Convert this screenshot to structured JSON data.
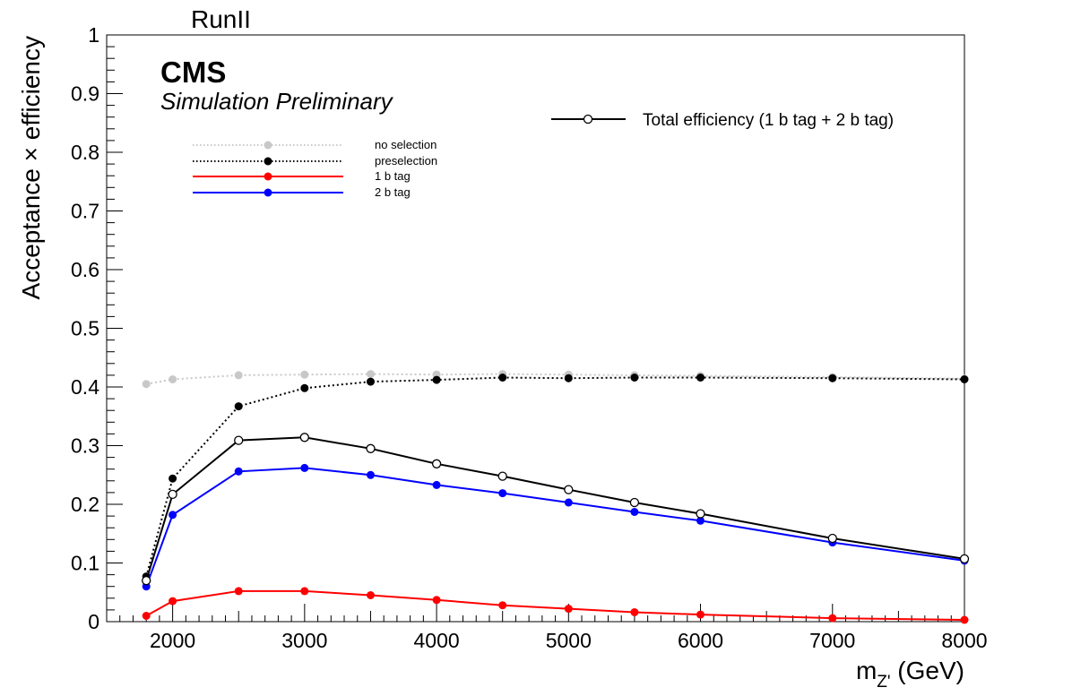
{
  "header": {
    "run_label": "RunII",
    "cms_label": "CMS",
    "sim_label": "Simulation Preliminary"
  },
  "chart_data": {
    "type": "line",
    "title": "",
    "xlabel_main": "m",
    "xlabel_sub": "Z'",
    "xlabel_unit": " (GeV)",
    "ylabel": "Acceptance × efficiency",
    "xlim": [
      1500,
      8000
    ],
    "ylim": [
      0,
      1
    ],
    "x_major_ticks": [
      2000,
      3000,
      4000,
      5000,
      6000,
      7000,
      8000
    ],
    "y_major_ticks": [
      0,
      0.1,
      0.2,
      0.3,
      0.4,
      0.5,
      0.6,
      0.7,
      0.8,
      0.9,
      1
    ],
    "y_tick_labels": [
      "0",
      "0.1",
      "0.2",
      "0.3",
      "0.4",
      "0.5",
      "0.6",
      "0.7",
      "0.8",
      "0.9",
      "1"
    ],
    "x_tick_labels": [
      "2000",
      "3000",
      "4000",
      "5000",
      "6000",
      "7000",
      "8000"
    ],
    "grid": false,
    "legend_placement": "top-left",
    "x": [
      1800,
      2000,
      2500,
      3000,
      3500,
      4000,
      4500,
      5000,
      5500,
      6000,
      7000,
      8000
    ],
    "series": [
      {
        "name": "no selection",
        "color": "#c8c8c8",
        "style": "dotted",
        "marker": "filled",
        "values": [
          0.405,
          0.413,
          0.42,
          0.421,
          0.422,
          0.421,
          0.422,
          0.421,
          0.42,
          0.419,
          0.417,
          0.414
        ]
      },
      {
        "name": "preselection",
        "color": "#000000",
        "style": "dotted",
        "marker": "filled",
        "values": [
          0.077,
          0.244,
          0.367,
          0.398,
          0.409,
          0.412,
          0.416,
          0.415,
          0.416,
          0.416,
          0.415,
          0.413
        ]
      },
      {
        "name": "1 b tag",
        "color": "#ff0000",
        "style": "solid",
        "marker": "filled",
        "values": [
          0.01,
          0.035,
          0.052,
          0.052,
          0.045,
          0.037,
          0.028,
          0.022,
          0.016,
          0.012,
          0.006,
          0.003
        ]
      },
      {
        "name": "2 b tag",
        "color": "#0000ff",
        "style": "solid",
        "marker": "filled",
        "values": [
          0.06,
          0.182,
          0.256,
          0.262,
          0.25,
          0.233,
          0.219,
          0.203,
          0.187,
          0.172,
          0.135,
          0.104
        ]
      },
      {
        "name": "Total efficiency (1 b tag + 2 b tag)",
        "color": "#000000",
        "style": "solid",
        "marker": "open",
        "values": [
          0.07,
          0.217,
          0.309,
          0.314,
          0.295,
          0.269,
          0.248,
          0.225,
          0.203,
          0.184,
          0.142,
          0.107
        ]
      }
    ]
  }
}
